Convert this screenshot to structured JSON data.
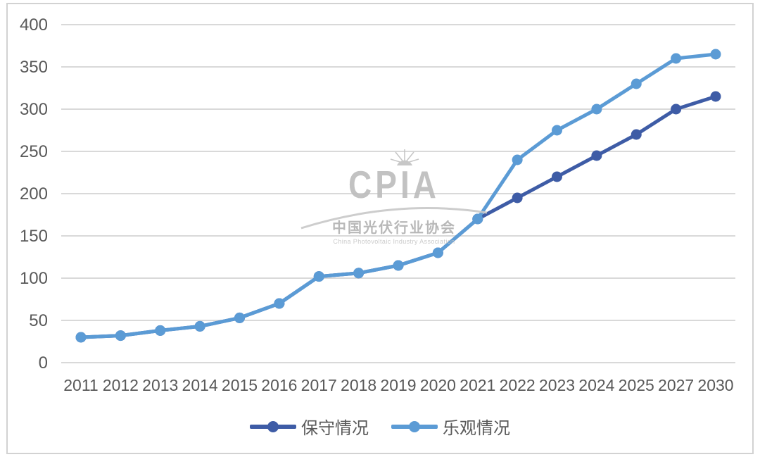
{
  "chart_data": {
    "type": "line",
    "title": "",
    "xlabel": "",
    "ylabel": "",
    "categories": [
      "2011",
      "2012",
      "2013",
      "2014",
      "2015",
      "2016",
      "2017",
      "2018",
      "2019",
      "2020",
      "2021",
      "2022",
      "2023",
      "2024",
      "2025",
      "2027",
      "2030"
    ],
    "series": [
      {
        "name": "保守情况",
        "color": "#3e5ca6",
        "values": [
          30,
          32,
          38,
          43,
          53,
          70,
          102,
          106,
          115,
          130,
          170,
          195,
          220,
          245,
          270,
          300,
          315
        ]
      },
      {
        "name": "乐观情况",
        "color": "#5b9bd5",
        "values": [
          30,
          32,
          38,
          43,
          53,
          70,
          102,
          106,
          115,
          130,
          170,
          240,
          275,
          300,
          330,
          360,
          365
        ]
      }
    ],
    "ylim": [
      0,
      400
    ],
    "yticks": [
      0,
      50,
      100,
      150,
      200,
      250,
      300,
      350,
      400
    ],
    "grid": "horizontal",
    "gridline_color": "#d9d9d9",
    "tick_label_color": "#595959",
    "legend_position": "bottom"
  },
  "watermark": {
    "logo_text": "CPIA",
    "org_name_cn": "中国光伏行业协会",
    "org_name_en": "China Photovoltaic Industry Association"
  }
}
